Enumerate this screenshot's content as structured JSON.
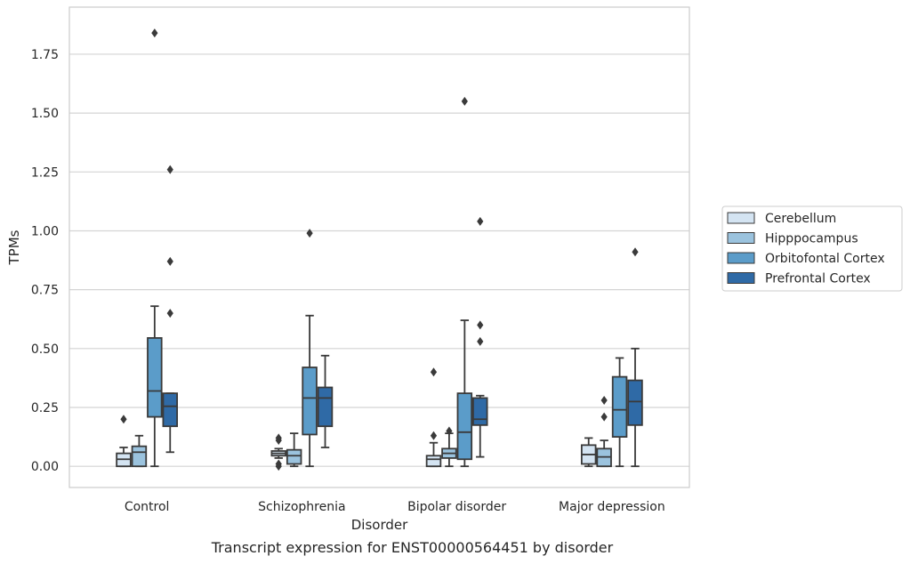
{
  "chart_data": {
    "type": "box",
    "caption": "Transcript expression for ENST00000564451 by disorder",
    "xlabel": "Disorder",
    "ylabel": "TPMs",
    "ylim": [
      -0.09,
      1.95
    ],
    "yticks": [
      0.0,
      0.25,
      0.5,
      0.75,
      1.0,
      1.25,
      1.5,
      1.75
    ],
    "ytick_labels": [
      "0.00",
      "0.25",
      "0.50",
      "0.75",
      "1.00",
      "1.25",
      "1.50",
      "1.75"
    ],
    "grid": "horizontal",
    "legend_position": "right",
    "categories": [
      "Control",
      "Schizophrenia",
      "Bipolar disorder",
      "Major depression"
    ],
    "series": [
      {
        "name": "Cerebellum",
        "color": "#d4e4f2",
        "boxes": [
          {
            "category": "Control",
            "whisker_low": 0.0,
            "q1": 0.0,
            "median": 0.03,
            "q3": 0.055,
            "whisker_high": 0.08,
            "outliers": [
              0.2
            ]
          },
          {
            "category": "Schizophrenia",
            "whisker_low": 0.035,
            "q1": 0.045,
            "median": 0.055,
            "q3": 0.065,
            "whisker_high": 0.075,
            "outliers": [
              0.0,
              0.01,
              0.11,
              0.12
            ]
          },
          {
            "category": "Bipolar disorder",
            "whisker_low": 0.0,
            "q1": 0.0,
            "median": 0.03,
            "q3": 0.045,
            "whisker_high": 0.1,
            "outliers": [
              0.13,
              0.4
            ]
          },
          {
            "category": "Major depression",
            "whisker_low": 0.0,
            "q1": 0.01,
            "median": 0.05,
            "q3": 0.09,
            "whisker_high": 0.12,
            "outliers": []
          }
        ]
      },
      {
        "name": "Hipppocampus",
        "color": "#9bc3de",
        "boxes": [
          {
            "category": "Control",
            "whisker_low": 0.0,
            "q1": 0.0,
            "median": 0.06,
            "q3": 0.085,
            "whisker_high": 0.13,
            "outliers": []
          },
          {
            "category": "Schizophrenia",
            "whisker_low": 0.0,
            "q1": 0.01,
            "median": 0.045,
            "q3": 0.07,
            "whisker_high": 0.14,
            "outliers": []
          },
          {
            "category": "Bipolar disorder",
            "whisker_low": 0.0,
            "q1": 0.035,
            "median": 0.055,
            "q3": 0.075,
            "whisker_high": 0.14,
            "outliers": [
              0.15
            ]
          },
          {
            "category": "Major depression",
            "whisker_low": 0.0,
            "q1": 0.0,
            "median": 0.04,
            "q3": 0.075,
            "whisker_high": 0.11,
            "outliers": [
              0.21,
              0.28
            ]
          }
        ]
      },
      {
        "name": "Orbitofontal Cortex",
        "color": "#5b9cc9",
        "boxes": [
          {
            "category": "Control",
            "whisker_low": 0.0,
            "q1": 0.21,
            "median": 0.32,
            "q3": 0.545,
            "whisker_high": 0.68,
            "outliers": [
              1.84
            ]
          },
          {
            "category": "Schizophrenia",
            "whisker_low": 0.0,
            "q1": 0.135,
            "median": 0.29,
            "q3": 0.42,
            "whisker_high": 0.64,
            "outliers": [
              0.99
            ]
          },
          {
            "category": "Bipolar disorder",
            "whisker_low": 0.0,
            "q1": 0.03,
            "median": 0.145,
            "q3": 0.31,
            "whisker_high": 0.62,
            "outliers": [
              1.55
            ]
          },
          {
            "category": "Major depression",
            "whisker_low": 0.0,
            "q1": 0.125,
            "median": 0.24,
            "q3": 0.38,
            "whisker_high": 0.46,
            "outliers": []
          }
        ]
      },
      {
        "name": "Prefrontal Cortex",
        "color": "#2f6aa6",
        "boxes": [
          {
            "category": "Control",
            "whisker_low": 0.06,
            "q1": 0.17,
            "median": 0.255,
            "q3": 0.31,
            "whisker_high": 0.31,
            "outliers": [
              0.65,
              0.87,
              1.26
            ]
          },
          {
            "category": "Schizophrenia",
            "whisker_low": 0.08,
            "q1": 0.17,
            "median": 0.29,
            "q3": 0.335,
            "whisker_high": 0.47,
            "outliers": []
          },
          {
            "category": "Bipolar disorder",
            "whisker_low": 0.04,
            "q1": 0.175,
            "median": 0.2,
            "q3": 0.29,
            "whisker_high": 0.3,
            "outliers": [
              0.53,
              0.6,
              1.04
            ]
          },
          {
            "category": "Major depression",
            "whisker_low": 0.0,
            "q1": 0.175,
            "median": 0.275,
            "q3": 0.365,
            "whisker_high": 0.5,
            "outliers": [
              0.91
            ]
          }
        ]
      }
    ]
  }
}
